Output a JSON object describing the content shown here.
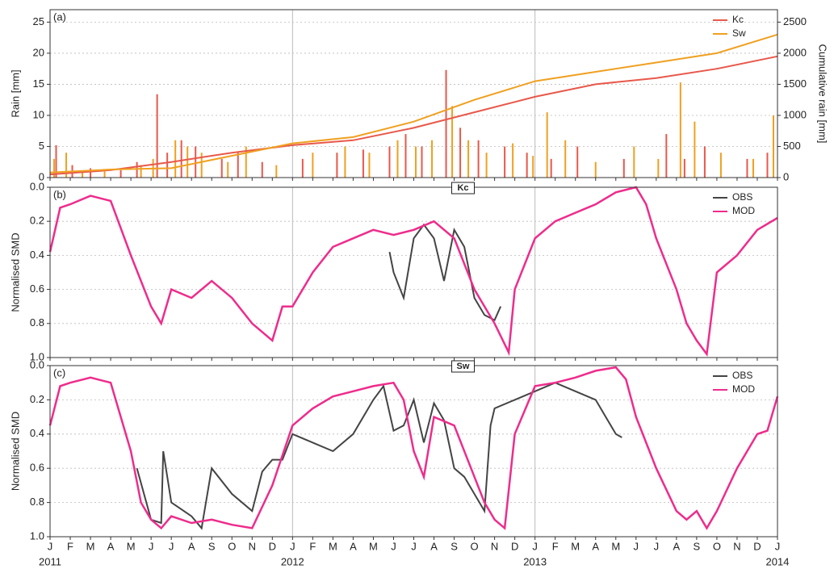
{
  "chart_data": [
    {
      "type": "bar-line",
      "panel_label": "(a)",
      "y_label": "Rain [mm]",
      "y2_label": "Cumulative rain [mm]",
      "xlim": [
        0,
        36
      ],
      "ylim": [
        0,
        27
      ],
      "yticks": [
        0,
        5,
        10,
        15,
        20,
        25
      ],
      "y2lim": [
        0,
        2700
      ],
      "y2ticks": [
        0,
        500,
        1000,
        1500,
        2000,
        2500
      ],
      "grid": true,
      "legend": "top-right",
      "bars": [
        {
          "color": "#e8584a",
          "x": [
            0.3,
            1.1,
            2,
            3.5,
            4.3,
            5.3,
            5.8,
            6.5,
            7.2,
            8.5,
            9.3,
            10.5,
            12.5,
            14.2,
            15.5,
            16.8,
            17.6,
            18.4,
            19.6,
            20.3,
            21.2,
            22.5,
            23.6,
            24.8,
            26.1,
            28.4,
            30.5,
            31.4,
            32.4,
            34.5,
            35.5
          ],
          "values": [
            5.2,
            2,
            1.5,
            1.2,
            2.5,
            13.4,
            4,
            6,
            5,
            3,
            4,
            2.5,
            3,
            4,
            4.5,
            5,
            7,
            5,
            17.3,
            8,
            6,
            5,
            4,
            3,
            5,
            3,
            7,
            3,
            5,
            3,
            4
          ]
        },
        {
          "color": "#f0a020",
          "x": [
            0.2,
            0.8,
            1.6,
            2.7,
            4.5,
            5.1,
            6.2,
            6.8,
            7.5,
            8.8,
            9.7,
            11.2,
            13,
            14.6,
            15.8,
            17.2,
            18.1,
            18.9,
            19.9,
            20.7,
            21.6,
            22.9,
            23.9,
            24.6,
            25.5,
            27,
            28.9,
            30.1,
            31.2,
            31.9,
            33.2,
            34.8,
            35.8
          ],
          "values": [
            3,
            4,
            1,
            1,
            2,
            3,
            6,
            5,
            4,
            2.5,
            5,
            2,
            4,
            5,
            4,
            6,
            5,
            6,
            11.5,
            6,
            4,
            5.5,
            3.5,
            10.5,
            6,
            2.5,
            5,
            3,
            15.3,
            9,
            4,
            3,
            10
          ]
        }
      ],
      "series": [
        {
          "name": "Kc",
          "color": "#e8584a",
          "axis": "y2",
          "x": [
            0,
            3,
            6,
            9,
            12,
            15,
            18,
            21,
            24,
            27,
            30,
            33,
            36
          ],
          "values": [
            50,
            120,
            250,
            400,
            520,
            600,
            800,
            1050,
            1300,
            1500,
            1600,
            1750,
            1950
          ]
        },
        {
          "name": "Sw",
          "color": "#f0a020",
          "axis": "y2",
          "x": [
            0,
            3,
            6,
            9,
            12,
            15,
            18,
            21,
            24,
            27,
            30,
            33,
            36
          ],
          "values": [
            80,
            130,
            150,
            350,
            550,
            650,
            900,
            1250,
            1550,
            1700,
            1850,
            2000,
            2300
          ]
        }
      ]
    },
    {
      "type": "line",
      "panel_label": "(b)",
      "site": "Kc",
      "y_label": "Normalised SMD",
      "xlim": [
        0,
        36
      ],
      "ylim": [
        1,
        0
      ],
      "yticks": [
        {
          "value": 0,
          "label": "0.0"
        },
        0.2,
        0.4,
        0.6,
        0.8,
        {
          "value": 1,
          "label": "1.0"
        }
      ],
      "grid": true,
      "legend": "top-right",
      "series": [
        {
          "name": "OBS",
          "color": "#444444",
          "x": [
            16.8,
            17,
            17.5,
            18,
            18.5,
            19,
            19.5,
            20,
            20.5,
            21,
            21.5,
            22,
            22.3
          ],
          "values": [
            0.38,
            0.5,
            0.65,
            0.3,
            0.22,
            0.3,
            0.55,
            0.25,
            0.35,
            0.65,
            0.75,
            0.78,
            0.7
          ]
        },
        {
          "name": "MOD",
          "color": "#ee2c8c",
          "x": [
            0,
            0.5,
            1,
            2,
            3,
            4,
            5,
            5.5,
            6,
            7,
            8,
            9,
            10,
            11,
            11.5,
            12,
            13,
            14,
            15,
            16,
            17,
            18,
            19,
            20,
            21,
            22,
            22.7,
            23,
            24,
            25,
            26,
            27,
            28,
            29,
            29.5,
            30,
            31,
            31.5,
            32,
            32.5,
            33,
            34,
            35,
            36
          ],
          "values": [
            0.38,
            0.12,
            0.1,
            0.05,
            0.08,
            0.4,
            0.7,
            0.8,
            0.6,
            0.65,
            0.55,
            0.65,
            0.8,
            0.9,
            0.7,
            0.7,
            0.5,
            0.35,
            0.3,
            0.25,
            0.28,
            0.25,
            0.2,
            0.3,
            0.6,
            0.8,
            0.97,
            0.6,
            0.3,
            0.2,
            0.15,
            0.1,
            0.03,
            0,
            0.1,
            0.3,
            0.6,
            0.8,
            0.9,
            0.98,
            0.5,
            0.4,
            0.25,
            0.18
          ]
        }
      ]
    },
    {
      "type": "line",
      "panel_label": "(c)",
      "site": "Sw",
      "y_label": "Normalised SMD",
      "xlim": [
        0,
        36
      ],
      "ylim": [
        1,
        0
      ],
      "yticks": [
        {
          "value": 0,
          "label": "0.0"
        },
        0.2,
        0.4,
        0.6,
        0.8,
        {
          "value": 1,
          "label": "1.0"
        }
      ],
      "grid": true,
      "xticks": [
        {
          "value": 0,
          "label": "J"
        },
        {
          "value": 1,
          "label": "F"
        },
        {
          "value": 2,
          "label": "M"
        },
        {
          "value": 3,
          "label": "A"
        },
        {
          "value": 4,
          "label": "M"
        },
        {
          "value": 5,
          "label": "J"
        },
        {
          "value": 6,
          "label": "J"
        },
        {
          "value": 7,
          "label": "A"
        },
        {
          "value": 8,
          "label": "S"
        },
        {
          "value": 9,
          "label": "O"
        },
        {
          "value": 10,
          "label": "N"
        },
        {
          "value": 11,
          "label": "D"
        },
        {
          "value": 12,
          "label": "J"
        },
        {
          "value": 13,
          "label": "F"
        },
        {
          "value": 14,
          "label": "M"
        },
        {
          "value": 15,
          "label": "A"
        },
        {
          "value": 16,
          "label": "M"
        },
        {
          "value": 17,
          "label": "J"
        },
        {
          "value": 18,
          "label": "J"
        },
        {
          "value": 19,
          "label": "A"
        },
        {
          "value": 20,
          "label": "S"
        },
        {
          "value": 21,
          "label": "O"
        },
        {
          "value": 22,
          "label": "N"
        },
        {
          "value": 23,
          "label": "D"
        },
        {
          "value": 24,
          "label": "J"
        },
        {
          "value": 25,
          "label": "F"
        },
        {
          "value": 26,
          "label": "M"
        },
        {
          "value": 27,
          "label": "A"
        },
        {
          "value": 28,
          "label": "M"
        },
        {
          "value": 29,
          "label": "J"
        },
        {
          "value": 30,
          "label": "J"
        },
        {
          "value": 31,
          "label": "A"
        },
        {
          "value": 32,
          "label": "S"
        },
        {
          "value": 33,
          "label": "O"
        },
        {
          "value": 34,
          "label": "N"
        },
        {
          "value": 35,
          "label": "D"
        },
        {
          "value": 36,
          "label": "J"
        }
      ],
      "year_ticks": [
        {
          "value": 0,
          "label": "2011"
        },
        {
          "value": 12,
          "label": "2012"
        },
        {
          "value": 24,
          "label": "2013"
        },
        {
          "value": 36,
          "label": "2014"
        }
      ],
      "series": [
        {
          "name": "OBS",
          "color": "#444444",
          "x": [
            4.3,
            5,
            5.5,
            5.6,
            6,
            7,
            7.5,
            8,
            9,
            10,
            10.5,
            11,
            11.5,
            12,
            13,
            14,
            15,
            16,
            16.5,
            17,
            17.5,
            18,
            18.5,
            19,
            19.5,
            20,
            20.5,
            21,
            21.5,
            21.8,
            22,
            23,
            24,
            25,
            26,
            27,
            27.5,
            28,
            28.3
          ],
          "values": [
            0.6,
            0.9,
            0.92,
            0.5,
            0.8,
            0.88,
            0.95,
            0.6,
            0.75,
            0.85,
            0.62,
            0.55,
            0.55,
            0.4,
            0.45,
            0.5,
            0.4,
            0.2,
            0.12,
            0.38,
            0.35,
            0.2,
            0.45,
            0.22,
            0.32,
            0.6,
            0.65,
            0.75,
            0.85,
            0.35,
            0.25,
            0.2,
            0.15,
            0.1,
            0.15,
            0.2,
            0.3,
            0.4,
            0.42
          ]
        },
        {
          "name": "MOD",
          "color": "#ee2c8c",
          "x": [
            0,
            0.5,
            1,
            2,
            3,
            4,
            4.5,
            5,
            5.5,
            6,
            7,
            8,
            9,
            10,
            11,
            12,
            13,
            14,
            15,
            16,
            17,
            17.5,
            18,
            18.5,
            19,
            20,
            21,
            21.5,
            22,
            22.5,
            23,
            24,
            25,
            26,
            27,
            28,
            28.5,
            29,
            30,
            31,
            31.5,
            32,
            32.5,
            33,
            34,
            35,
            35.5,
            36
          ],
          "values": [
            0.35,
            0.12,
            0.1,
            0.07,
            0.1,
            0.5,
            0.8,
            0.9,
            0.95,
            0.88,
            0.92,
            0.9,
            0.93,
            0.95,
            0.7,
            0.35,
            0.25,
            0.18,
            0.15,
            0.12,
            0.1,
            0.2,
            0.5,
            0.65,
            0.3,
            0.35,
            0.65,
            0.8,
            0.9,
            0.95,
            0.4,
            0.12,
            0.1,
            0.07,
            0.03,
            0.01,
            0.08,
            0.3,
            0.6,
            0.85,
            0.9,
            0.85,
            0.95,
            0.85,
            0.6,
            0.4,
            0.38,
            0.18
          ]
        }
      ]
    }
  ]
}
